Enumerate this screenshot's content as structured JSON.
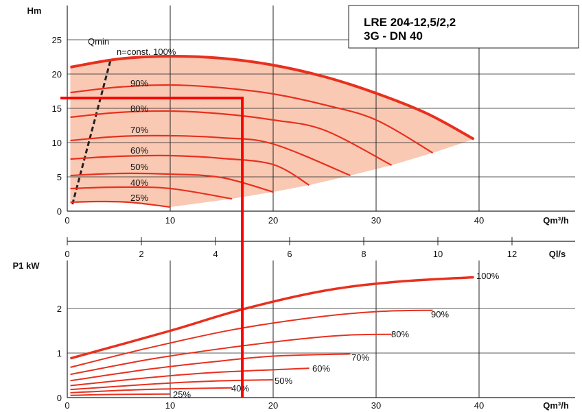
{
  "chart_data": [
    {
      "type": "line",
      "title": "LRE 204-12,5/2,2",
      "subtitle": "3G - DN 40",
      "ylabel": "Hm",
      "xlabel": "Qm³/h",
      "xlabel2": "Ql/s",
      "xlim": [
        0,
        40
      ],
      "ylim": [
        0,
        25
      ],
      "x_ticks": [
        "0",
        "10",
        "20",
        "30",
        "40"
      ],
      "x2_ticks": [
        "0",
        "2",
        "4",
        "6",
        "8",
        "10",
        "12"
      ],
      "y_ticks": [
        "0",
        "5",
        "10",
        "15",
        "20",
        "25"
      ],
      "grid": true,
      "qmin_label": "Qmin",
      "qmin_line": [
        {
          "x": 0.5,
          "y": 1
        },
        {
          "x": 4.2,
          "y": 22
        }
      ],
      "series": [
        {
          "name": "n=const. 100%",
          "points": [
            [
              0.3,
              21
            ],
            [
              5,
              22.2
            ],
            [
              10,
              22.6
            ],
            [
              15,
              22.3
            ],
            [
              20,
              21.3
            ],
            [
              25,
              19.6
            ],
            [
              30,
              17.2
            ],
            [
              35,
              14.2
            ],
            [
              39.5,
              10.5
            ]
          ]
        },
        {
          "name": "90%",
          "points": [
            [
              0.3,
              17.3
            ],
            [
              5,
              18.1
            ],
            [
              10,
              18.4
            ],
            [
              15,
              18
            ],
            [
              20,
              17.1
            ],
            [
              25,
              15.5
            ],
            [
              30,
              13.3
            ],
            [
              35.5,
              8.5
            ]
          ]
        },
        {
          "name": "80%",
          "points": [
            [
              0.3,
              13.7
            ],
            [
              5,
              14.4
            ],
            [
              10,
              14.6
            ],
            [
              15,
              14.2
            ],
            [
              20,
              13.3
            ],
            [
              25,
              11.8
            ],
            [
              31.5,
              6.7
            ]
          ]
        },
        {
          "name": "70%",
          "points": [
            [
              0.3,
              10.3
            ],
            [
              5,
              10.9
            ],
            [
              10,
              11
            ],
            [
              15,
              10.7
            ],
            [
              20,
              9.8
            ],
            [
              27.5,
              5.2
            ]
          ]
        },
        {
          "name": "60%",
          "points": [
            [
              0.3,
              7.6
            ],
            [
              5,
              8
            ],
            [
              10,
              8.1
            ],
            [
              15,
              7.7
            ],
            [
              20,
              6.8
            ],
            [
              23.5,
              3.8
            ]
          ]
        },
        {
          "name": "50%",
          "points": [
            [
              0.3,
              5.2
            ],
            [
              5,
              5.5
            ],
            [
              10,
              5.4
            ],
            [
              15,
              4.9
            ],
            [
              20,
              2.8
            ]
          ]
        },
        {
          "name": "40%",
          "points": [
            [
              0.3,
              3.3
            ],
            [
              5,
              3.5
            ],
            [
              10,
              3.3
            ],
            [
              16,
              1.8
            ]
          ]
        },
        {
          "name": "25%",
          "points": [
            [
              0.3,
              1.3
            ],
            [
              3,
              1.4
            ],
            [
              6,
              1.3
            ],
            [
              10,
              0.6
            ]
          ]
        }
      ],
      "operating_point": {
        "x": 17,
        "y": 16.5
      }
    },
    {
      "type": "line",
      "ylabel": "P1 kW",
      "xlabel": "Qm³/h",
      "xlim": [
        0,
        40
      ],
      "ylim": [
        0,
        3
      ],
      "x_ticks": [
        "0",
        "10",
        "20",
        "30",
        "40"
      ],
      "y_ticks": [
        "0",
        "1",
        "2"
      ],
      "grid": true,
      "series": [
        {
          "name": "100%",
          "points": [
            [
              0.3,
              0.88
            ],
            [
              10,
              1.5
            ],
            [
              17,
              1.98
            ],
            [
              25,
              2.4
            ],
            [
              32,
              2.6
            ],
            [
              39.5,
              2.7
            ]
          ]
        },
        {
          "name": "90%",
          "points": [
            [
              0.3,
              0.68
            ],
            [
              8,
              1.12
            ],
            [
              16,
              1.52
            ],
            [
              24,
              1.8
            ],
            [
              30,
              1.93
            ],
            [
              35.5,
              1.96
            ]
          ]
        },
        {
          "name": "80%",
          "points": [
            [
              0.3,
              0.52
            ],
            [
              8,
              0.86
            ],
            [
              15,
              1.1
            ],
            [
              22,
              1.3
            ],
            [
              27,
              1.4
            ],
            [
              31.5,
              1.42
            ]
          ]
        },
        {
          "name": "70%",
          "points": [
            [
              0.3,
              0.38
            ],
            [
              8,
              0.64
            ],
            [
              14,
              0.8
            ],
            [
              20,
              0.93
            ],
            [
              27.5,
              0.98
            ]
          ]
        },
        {
          "name": "60%",
          "points": [
            [
              0.3,
              0.27
            ],
            [
              8,
              0.45
            ],
            [
              14,
              0.56
            ],
            [
              23.5,
              0.66
            ]
          ]
        },
        {
          "name": "50%",
          "points": [
            [
              0.3,
              0.18
            ],
            [
              8,
              0.3
            ],
            [
              14,
              0.37
            ],
            [
              20,
              0.4
            ]
          ]
        },
        {
          "name": "40%",
          "points": [
            [
              0.3,
              0.11
            ],
            [
              6,
              0.17
            ],
            [
              11,
              0.2
            ],
            [
              16,
              0.22
            ]
          ]
        },
        {
          "name": "25%",
          "points": [
            [
              0.3,
              0.05
            ],
            [
              4,
              0.07
            ],
            [
              10,
              0.08
            ]
          ]
        }
      ],
      "operating_point": {
        "x": 17,
        "y": 1.98
      }
    }
  ],
  "colors": {
    "curve": "#e8301e",
    "fill": "#f9c9b4",
    "grid": "#222222",
    "marker": "#ff0000",
    "title": "#e8301e"
  }
}
